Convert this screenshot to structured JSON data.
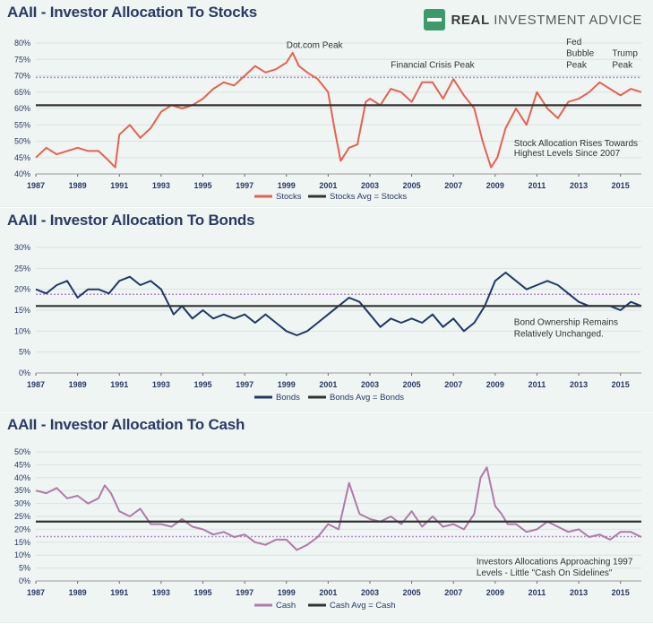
{
  "brand": {
    "name_part1": "REAL ",
    "name_part2": "INVESTMENT ADVICE",
    "icon": "rectangle-logo-icon"
  },
  "colors": {
    "stocks": "#e8614f",
    "bonds": "#1f3a66",
    "cash": "#b07aa8",
    "avg": "#333333",
    "reference": "#b58bc6"
  },
  "chart_data": [
    {
      "type": "line",
      "title": "AAII - Investor Allocation To Stocks",
      "x_ticks": [
        "1987",
        "1989",
        "1991",
        "1993",
        "1995",
        "1997",
        "1999",
        "2001",
        "2003",
        "2005",
        "2007",
        "2009",
        "2011",
        "2013",
        "2015"
      ],
      "ylim": [
        40,
        80
      ],
      "y_ticks": [
        "40%",
        "45%",
        "50%",
        "55%",
        "60%",
        "65%",
        "70%",
        "75%",
        "80%"
      ],
      "series": [
        {
          "name": "Stocks",
          "color": "#e8614f",
          "x": [
            1987.0,
            1987.5,
            1988.0,
            1988.5,
            1989.0,
            1989.5,
            1990.0,
            1990.5,
            1990.8,
            1991.0,
            1991.5,
            1992.0,
            1992.5,
            1993.0,
            1993.5,
            1994.0,
            1994.5,
            1995.0,
            1995.5,
            1996.0,
            1996.5,
            1997.0,
            1997.5,
            1998.0,
            1998.5,
            1999.0,
            1999.3,
            1999.6,
            2000.0,
            2000.5,
            2001.0,
            2001.3,
            2001.6,
            2002.0,
            2002.4,
            2002.8,
            2003.0,
            2003.5,
            2004.0,
            2004.5,
            2005.0,
            2005.5,
            2006.0,
            2006.5,
            2007.0,
            2007.5,
            2008.0,
            2008.4,
            2008.8,
            2009.1,
            2009.5,
            2010.0,
            2010.5,
            2011.0,
            2011.5,
            2012.0,
            2012.5,
            2013.0,
            2013.5,
            2014.0,
            2014.5,
            2015.0,
            2015.5,
            2016.0
          ],
          "values": [
            45,
            48,
            46,
            47,
            48,
            47,
            47,
            44,
            42,
            52,
            55,
            51,
            54,
            59,
            61,
            60,
            61,
            63,
            66,
            68,
            67,
            70,
            73,
            71,
            72,
            74,
            77,
            73,
            71,
            69,
            65,
            54,
            44,
            48,
            49,
            62,
            63,
            61,
            66,
            65,
            62,
            68,
            68,
            63,
            69,
            64,
            60,
            50,
            42,
            45,
            54,
            60,
            55,
            65,
            60,
            57,
            62,
            63,
            65,
            68,
            66,
            64,
            66,
            65
          ],
          "x_label": "1987"
        },
        {
          "name": "Stocks Avg = Stocks",
          "color": "#333333",
          "constant": 61
        }
      ],
      "reference_line": 69.5,
      "legend": [
        "Stocks",
        "Stocks Avg = Stocks"
      ],
      "legend_placement": "bottom-center",
      "annotations": [
        {
          "text": "Dot.com Peak",
          "x": 1999.0,
          "y": 78.5
        },
        {
          "text": "Financial Crisis Peak",
          "x": 2004.0,
          "y": 72.5
        },
        {
          "text": "Fed",
          "x": 2012.4,
          "y": 79.5
        },
        {
          "text": "Bubble",
          "x": 2012.4,
          "y": 76
        },
        {
          "text": "Peak",
          "x": 2012.4,
          "y": 72.5
        },
        {
          "text": "Trump",
          "x": 2014.6,
          "y": 76
        },
        {
          "text": "Peak",
          "x": 2014.6,
          "y": 72.5
        },
        {
          "text": "Stock Allocation Rises Towards",
          "x": 2009.9,
          "y": 48.5
        },
        {
          "text": "Highest Levels Since 2007",
          "x": 2009.9,
          "y": 45.5
        }
      ]
    },
    {
      "type": "line",
      "title": "AAII - Investor Allocation To Bonds",
      "x_ticks": [
        "1987",
        "1989",
        "1991",
        "1993",
        "1995",
        "1997",
        "1999",
        "2001",
        "2003",
        "2005",
        "2007",
        "2009",
        "2011",
        "2013",
        "2015"
      ],
      "ylim": [
        0,
        30
      ],
      "y_ticks": [
        "0%",
        "5%",
        "10%",
        "15%",
        "20%",
        "25%",
        "30%"
      ],
      "series": [
        {
          "name": "Bonds",
          "color": "#1f3a66",
          "x": [
            1987.0,
            1987.5,
            1988.0,
            1988.5,
            1989.0,
            1989.5,
            1990.0,
            1990.5,
            1991.0,
            1991.5,
            1992.0,
            1992.5,
            1993.0,
            1993.3,
            1993.6,
            1994.0,
            1994.5,
            1995.0,
            1995.5,
            1996.0,
            1996.5,
            1997.0,
            1997.5,
            1998.0,
            1998.5,
            1999.0,
            1999.5,
            2000.0,
            2000.5,
            2001.0,
            2001.5,
            2002.0,
            2002.5,
            2003.0,
            2003.5,
            2004.0,
            2004.5,
            2005.0,
            2005.5,
            2006.0,
            2006.5,
            2007.0,
            2007.5,
            2008.0,
            2008.5,
            2009.0,
            2009.5,
            2010.0,
            2010.5,
            2011.0,
            2011.5,
            2012.0,
            2012.5,
            2013.0,
            2013.5,
            2014.0,
            2014.5,
            2015.0,
            2015.5,
            2016.0
          ],
          "values": [
            20,
            19,
            21,
            22,
            18,
            20,
            20,
            19,
            22,
            23,
            21,
            22,
            20,
            17,
            14,
            16,
            13,
            15,
            13,
            14,
            13,
            14,
            12,
            14,
            12,
            10,
            9,
            10,
            12,
            14,
            16,
            18,
            17,
            14,
            11,
            13,
            12,
            13,
            12,
            14,
            11,
            13,
            10,
            12,
            16,
            22,
            24,
            22,
            20,
            21,
            22,
            21,
            19,
            17,
            16,
            16,
            16,
            15,
            17,
            16
          ]
        },
        {
          "name": "Bonds Avg = Bonds",
          "color": "#333333",
          "constant": 16
        }
      ],
      "reference_line": 18.8,
      "legend": [
        "Bonds",
        "Bonds Avg = Bonds"
      ],
      "legend_placement": "bottom-center",
      "annotations": [
        {
          "text": "Bond Ownership Remains",
          "x": 2009.9,
          "y": 11.5
        },
        {
          "text": "Relatively Unchanged.",
          "x": 2009.9,
          "y": 8.7
        }
      ]
    },
    {
      "type": "line",
      "title": "AAII - Investor Allocation To Cash",
      "x_ticks": [
        "1987",
        "1989",
        "1991",
        "1993",
        "1995",
        "1997",
        "1999",
        "2001",
        "2003",
        "2005",
        "2007",
        "2009",
        "2011",
        "2013",
        "2015"
      ],
      "ylim": [
        0,
        50
      ],
      "y_ticks": [
        "0%",
        "5%",
        "10%",
        "15%",
        "20%",
        "25%",
        "30%",
        "35%",
        "40%",
        "45%",
        "50%"
      ],
      "series": [
        {
          "name": "Cash",
          "color": "#b07aa8",
          "x": [
            1987.0,
            1987.5,
            1988.0,
            1988.5,
            1989.0,
            1989.5,
            1990.0,
            1990.3,
            1990.6,
            1991.0,
            1991.5,
            1992.0,
            1992.5,
            1993.0,
            1993.5,
            1994.0,
            1994.5,
            1995.0,
            1995.5,
            1996.0,
            1996.5,
            1997.0,
            1997.5,
            1998.0,
            1998.5,
            1999.0,
            1999.5,
            2000.0,
            2000.5,
            2001.0,
            2001.5,
            2002.0,
            2002.5,
            2003.0,
            2003.5,
            2004.0,
            2004.5,
            2005.0,
            2005.5,
            2006.0,
            2006.5,
            2007.0,
            2007.5,
            2008.0,
            2008.3,
            2008.6,
            2009.0,
            2009.3,
            2009.6,
            2010.0,
            2010.5,
            2011.0,
            2011.5,
            2012.0,
            2012.5,
            2013.0,
            2013.5,
            2014.0,
            2014.5,
            2015.0,
            2015.5,
            2016.0
          ],
          "values": [
            35,
            34,
            36,
            32,
            33,
            30,
            32,
            37,
            34,
            27,
            25,
            28,
            22,
            22,
            21,
            24,
            21,
            20,
            18,
            19,
            17,
            18,
            15,
            14,
            16,
            16,
            12,
            14,
            17,
            22,
            20,
            38,
            26,
            24,
            23,
            25,
            22,
            27,
            21,
            25,
            21,
            22,
            20,
            26,
            40,
            44,
            29,
            26,
            22,
            22,
            19,
            20,
            23,
            21,
            19,
            20,
            17,
            18,
            16,
            19,
            19,
            17
          ]
        },
        {
          "name": "Cash Avg = Cash",
          "color": "#333333",
          "constant": 23
        }
      ],
      "reference_line": 17.2,
      "legend": [
        "Cash",
        "Cash Avg = Cash"
      ],
      "legend_placement": "bottom-center",
      "annotations": [
        {
          "text": "Investors Allocations Approaching 1997",
          "x": 2008.1,
          "y": 6.5
        },
        {
          "text": "Levels - Little \"Cash On Sidelines\"",
          "x": 2008.1,
          "y": 2.0
        }
      ]
    }
  ]
}
